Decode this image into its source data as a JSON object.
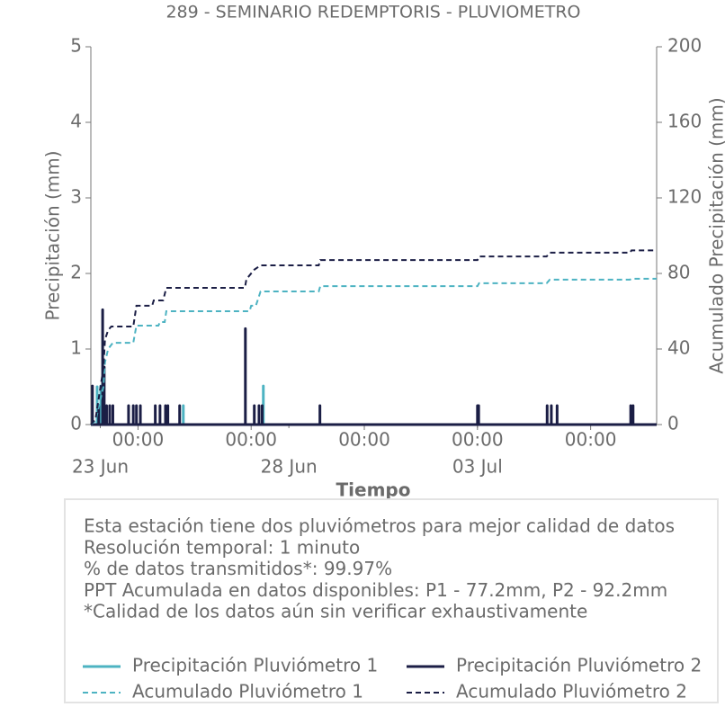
{
  "chart_data": {
    "type": "line",
    "title": "289 - SEMINARIO REDEMPTORIS - PLUVIOMETRO",
    "x_label": "Tiempo",
    "y_label": "Precipitación (mm)",
    "y2_label": "Acumulado Precipitación (mm)",
    "xlim": [
      "22 Jun 18:00",
      "07 Jul 18:00"
    ],
    "ylim": [
      0,
      5
    ],
    "yticks": [
      0,
      1,
      2,
      3,
      4,
      5
    ],
    "y2lim": [
      0,
      200
    ],
    "y2ticks": [
      0,
      40,
      80,
      120,
      160,
      200
    ],
    "xticks": [
      {
        "value": "24 Jun 00:00",
        "label": "00:00"
      },
      {
        "value": "27 Jun 00:00",
        "label": "00:00"
      },
      {
        "value": "30 Jun 00:00",
        "label": "00:00"
      },
      {
        "value": "03 Jul 00:00",
        "label": "00:00"
      },
      {
        "value": "06 Jul 00:00",
        "label": "00:00"
      }
    ],
    "xticks_dates": [
      {
        "value": "23 Jun 00:00",
        "label": "23 Jun"
      },
      {
        "value": "28 Jun 00:00",
        "label": "28 Jun"
      },
      {
        "value": "03 Jul 00:00",
        "label": "03 Jul"
      }
    ],
    "series": [
      {
        "name": "Precipitación Pluviómetro 1",
        "color": "#4db3c2",
        "style": "stem",
        "x": [
          "22 Jun 22:00",
          "23 Jun 00:20",
          "25 Jun 04:50",
          "27 Jun 07:45"
        ],
        "values": [
          0.5,
          0.51,
          0.25,
          0.51
        ]
      },
      {
        "name": "Precipitación Pluviómetro 2",
        "color": "#1b1e45",
        "style": "stem",
        "x": [
          "22 Jun 19:00",
          "22 Jun 23:00",
          "23 Jun 01:30",
          "23 Jun 02:30",
          "23 Jun 04:00",
          "23 Jun 06:00",
          "23 Jun 08:00",
          "23 Jun 18:00",
          "23 Jun 21:00",
          "23 Jun 23:00",
          "24 Jun 01:30",
          "24 Jun 11:00",
          "24 Jun 14:00",
          "24 Jun 17:30",
          "24 Jun 19:00",
          "25 Jun 02:30",
          "26 Jun 20:20",
          "27 Jun 02:00",
          "27 Jun 05:00",
          "27 Jun 07:00",
          "28 Jun 19:45",
          "03 Jul 00:00",
          "03 Jul 00:45",
          "04 Jul 20:20",
          "04 Jul 23:00",
          "05 Jul 02:40",
          "07 Jul 01:30",
          "07 Jul 03:00"
        ],
        "values": [
          0.51,
          0.25,
          1.52,
          0.76,
          0.25,
          0.25,
          0.25,
          0.25,
          0.25,
          0.25,
          0.25,
          0.25,
          0.25,
          0.25,
          0.25,
          0.25,
          1.27,
          0.25,
          0.25,
          0.25,
          0.25,
          0.25,
          0.25,
          0.25,
          0.25,
          0.25,
          0.25,
          0.25
        ]
      },
      {
        "name": "Acumulado Pluviómetro 1",
        "color": "#4db3c2",
        "style": "dashed",
        "axis": "y2",
        "x": [
          "22 Jun 18:00",
          "22 Jun 21:00",
          "23 Jun 02:00",
          "23 Jun 03:00",
          "23 Jun 05:00",
          "23 Jun 08:00",
          "23 Jun 21:00",
          "23 Jun 23:00",
          "24 Jun 13:00",
          "24 Jun 14:00",
          "24 Jun 17:00",
          "24 Jun 18:00",
          "26 Jun 23:00",
          "27 Jun 00:00",
          "27 Jun 03:00",
          "27 Jun 06:00",
          "28 Jun 19:00",
          "28 Jun 20:00",
          "03 Jul 00:00",
          "03 Jul 01:00",
          "04 Jul 20:00",
          "04 Jul 22:00",
          "07 Jul 01:00",
          "07 Jul 02:00",
          "07 Jul 18:00"
        ],
        "values": [
          0,
          2,
          20,
          33,
          40,
          43.3,
          43.3,
          52.4,
          52.4,
          54.3,
          54.3,
          60,
          60,
          62.9,
          62.9,
          70.5,
          70.5,
          73.3,
          73.3,
          74.8,
          74.8,
          76.7,
          76.7,
          77.2,
          77.2
        ]
      },
      {
        "name": "Acumulado Pluviómetro 2",
        "color": "#1b1e45",
        "style": "dashed",
        "axis": "y2",
        "x": [
          "22 Jun 18:00",
          "22 Jun 21:00",
          "23 Jun 02:00",
          "23 Jun 03:00",
          "23 Jun 05:00",
          "23 Jun 07:00",
          "23 Jun 21:00",
          "23 Jun 23:00",
          "24 Jun 09:00",
          "24 Jun 10:00",
          "24 Jun 16:00",
          "24 Jun 18:00",
          "26 Jun 20:00",
          "26 Jun 21:00",
          "27 Jun 02:00",
          "27 Jun 06:00",
          "28 Jun 19:00",
          "28 Jun 20:00",
          "03 Jul 00:00",
          "03 Jul 01:00",
          "04 Jul 20:00",
          "04 Jul 22:00",
          "07 Jul 01:00",
          "07 Jul 02:00",
          "07 Jul 18:00"
        ],
        "values": [
          0,
          3,
          30,
          45,
          50,
          51.9,
          51.9,
          62.9,
          62.9,
          65.7,
          65.7,
          72.4,
          72.4,
          77,
          82,
          84.3,
          84.3,
          87.1,
          87.1,
          89,
          89,
          91,
          91,
          92.2,
          92.2
        ]
      }
    ]
  },
  "info_box": {
    "lines": [
      "Esta estación tiene dos pluviómetros para mejor calidad de datos",
      "Resolución temporal: 1 minuto",
      "% de datos transmitidos*: 99.97%",
      "PPT Acumulada en datos disponibles: P1 - 77.2mm, P2 - 92.2mm",
      "*Calidad de los datos aún sin verificar exhaustivamente"
    ]
  }
}
